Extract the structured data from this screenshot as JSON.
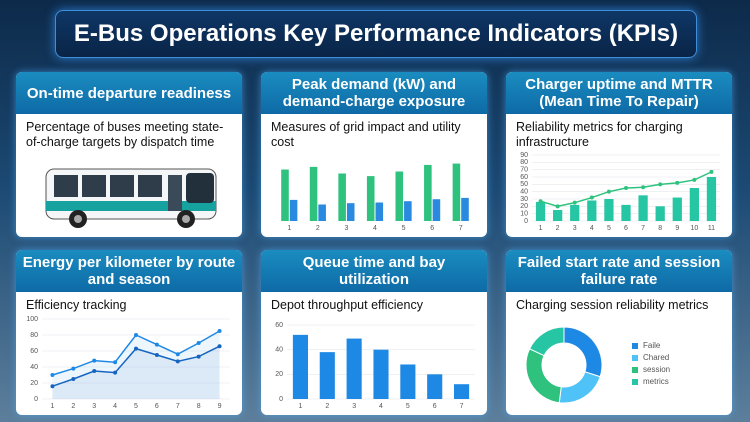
{
  "header": {
    "title": "E-Bus Operations Key Performance Indicators (KPIs)"
  },
  "cards": [
    {
      "title": "On-time departure readiness",
      "description": "Percentage of buses meeting state-of-charge targets by dispatch time"
    },
    {
      "title": "Peak demand (kW) and demand-charge exposure",
      "description": "Measures of grid impact and utility cost",
      "chart": {
        "type": "bar",
        "categories": [
          "1",
          "2",
          "3",
          "4",
          "5",
          "6",
          "7"
        ],
        "ylim": [
          0,
          100
        ],
        "series": [
          {
            "color": "#2ec27e",
            "values": [
              78,
              82,
              72,
              68,
              75,
              85,
              87
            ]
          },
          {
            "color": "#2a8ae0",
            "values": [
              32,
              25,
              27,
              28,
              30,
              33,
              35
            ]
          }
        ]
      }
    },
    {
      "title": "Charger uptime and MTTR (Mean Time To Repair)",
      "description": "Reliability metrics for charging infrastructure",
      "chart": {
        "type": "combo",
        "categories": [
          "1",
          "2",
          "3",
          "4",
          "5",
          "6",
          "7",
          "8",
          "9",
          "10",
          "11"
        ],
        "ylim": [
          0,
          90
        ],
        "yticks": [
          0,
          10,
          20,
          30,
          40,
          50,
          60,
          70,
          80,
          90
        ],
        "series": [
          {
            "type": "bar",
            "color": "#26c6a4",
            "values": [
              26,
              15,
              22,
              28,
              30,
              22,
              35,
              20,
              32,
              45,
              60
            ]
          },
          {
            "type": "line",
            "color": "#2ec27e",
            "values": [
              27,
              20,
              25,
              32,
              40,
              45,
              46,
              50,
              52,
              56,
              67
            ]
          }
        ]
      }
    },
    {
      "title": "Energy per kilometer by route and season",
      "description": "Efficiency tracking",
      "chart": {
        "type": "line",
        "categories": [
          "1",
          "2",
          "3",
          "4",
          "5",
          "6",
          "7",
          "8",
          "9"
        ],
        "ylim": [
          0,
          100
        ],
        "yticks": [
          0,
          20,
          40,
          60,
          80,
          100
        ],
        "series": [
          {
            "color": "#1e88e5",
            "values": [
              30,
              38,
              48,
              46,
              80,
              68,
              56,
              70,
              85
            ]
          },
          {
            "color": "#1565c0",
            "values": [
              16,
              25,
              35,
              33,
              63,
              55,
              47,
              53,
              66
            ]
          }
        ]
      }
    },
    {
      "title": "Queue time and bay utilization",
      "description": "Depot throughput efficiency",
      "chart": {
        "type": "bar",
        "categories": [
          "1",
          "2",
          "3",
          "4",
          "5",
          "6",
          "7"
        ],
        "ylim": [
          0,
          60
        ],
        "yticks": [
          0,
          20,
          40,
          60
        ],
        "series": [
          {
            "color": "#1e88e5",
            "values": [
              52,
              38,
              49,
              40,
              28,
              20,
              12
            ]
          }
        ]
      }
    },
    {
      "title": "Failed start rate and session failure rate",
      "description": "Charging session reliability metrics",
      "chart": {
        "type": "pie",
        "labels": [
          "Faile",
          "Chared",
          "session",
          "metrics"
        ],
        "values": [
          30,
          22,
          30,
          18
        ],
        "colors": [
          "#1e88e5",
          "#4fc3f7",
          "#2ec27e",
          "#26c6a4"
        ]
      }
    }
  ]
}
